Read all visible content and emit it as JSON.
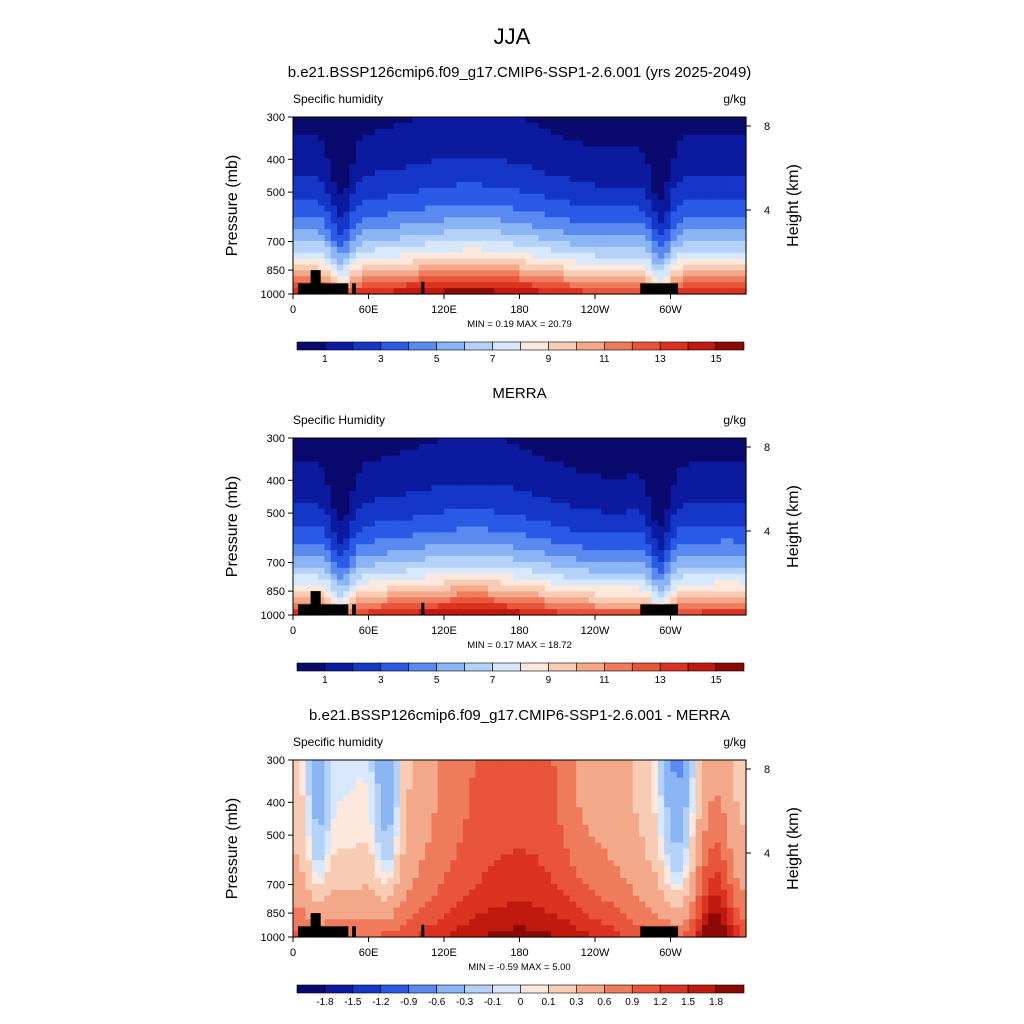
{
  "main_title": "JJA",
  "colors": {
    "abs_levels": [
      "#0a0a6e",
      "#0c1aa0",
      "#1437c8",
      "#2a5ae6",
      "#5a8af0",
      "#8ab4f4",
      "#b4d2f8",
      "#d8e8fc",
      "#fce8dc",
      "#f8ccb4",
      "#f4a88a",
      "#ee7c5c",
      "#e8553a",
      "#dc3220",
      "#c01a10",
      "#8c0a04"
    ],
    "diff_levels": [
      "#0a0a6e",
      "#0c1aa0",
      "#1437c8",
      "#2a5ae6",
      "#5a8af0",
      "#8ab4f4",
      "#b4d2f8",
      "#d8e8fc",
      "#fce8dc",
      "#f8ccb4",
      "#f4a88a",
      "#ee7c5c",
      "#e8553a",
      "#dc3220",
      "#c01a10",
      "#8c0a04"
    ],
    "terrain": "#000000"
  },
  "chart_data": [
    {
      "type": "heatmap",
      "title": "b.e21.BSSP126cmip6.f09_g17.CMIP6-SSP1-2.6.001 (yrs 2025-2049)",
      "variable_label": "Specific humidity",
      "units_label": "g/kg",
      "ylabel_left": "Pressure (mb)",
      "ylabel_right": "Height (km)",
      "y_ticks": [
        "300",
        "400",
        "500",
        "700",
        "850",
        "1000"
      ],
      "y_tick_values": [
        300,
        400,
        500,
        700,
        850,
        1000
      ],
      "y_right_ticks": [
        "8",
        "4"
      ],
      "y_right_tick_values": [
        8,
        4
      ],
      "x_ticks": [
        "0",
        "60E",
        "120E",
        "180",
        "120W",
        "60W"
      ],
      "x_tick_values": [
        0,
        60,
        120,
        180,
        240,
        300
      ],
      "xlim": [
        0,
        360
      ],
      "ylim": [
        1000,
        300
      ],
      "min_max_text": "MIN =   0.19  MAX =  20.79",
      "colorbar_labels": [
        "1",
        "3",
        "5",
        "7",
        "9",
        "11",
        "13",
        "15"
      ]
    },
    {
      "type": "heatmap",
      "title": "MERRA",
      "variable_label": "Specific Humidity",
      "units_label": "g/kg",
      "ylabel_left": "Pressure (mb)",
      "ylabel_right": "Height (km)",
      "y_ticks": [
        "300",
        "400",
        "500",
        "700",
        "850",
        "1000"
      ],
      "y_tick_values": [
        300,
        400,
        500,
        700,
        850,
        1000
      ],
      "y_right_ticks": [
        "8",
        "4"
      ],
      "y_right_tick_values": [
        8,
        4
      ],
      "x_ticks": [
        "0",
        "60E",
        "120E",
        "180",
        "120W",
        "60W"
      ],
      "x_tick_values": [
        0,
        60,
        120,
        180,
        240,
        300
      ],
      "xlim": [
        0,
        360
      ],
      "ylim": [
        1000,
        300
      ],
      "min_max_text": "MIN =   0.17  MAX =  18.72",
      "colorbar_labels": [
        "1",
        "3",
        "5",
        "7",
        "9",
        "11",
        "13",
        "15"
      ]
    },
    {
      "type": "heatmap",
      "title": "b.e21.BSSP126cmip6.f09_g17.CMIP6-SSP1-2.6.001 - MERRA",
      "variable_label": "Specific humidity",
      "units_label": "g/kg",
      "ylabel_left": "Pressure (mb)",
      "ylabel_right": "Height (km)",
      "y_ticks": [
        "300",
        "400",
        "500",
        "700",
        "850",
        "1000"
      ],
      "y_tick_values": [
        300,
        400,
        500,
        700,
        850,
        1000
      ],
      "y_right_ticks": [
        "8",
        "4"
      ],
      "y_right_tick_values": [
        8,
        4
      ],
      "x_ticks": [
        "0",
        "60E",
        "120E",
        "180",
        "120W",
        "60W"
      ],
      "x_tick_values": [
        0,
        60,
        120,
        180,
        240,
        300
      ],
      "xlim": [
        0,
        360
      ],
      "ylim": [
        1000,
        300
      ],
      "min_max_text": "MIN =  -0.59  MAX =   5.00",
      "colorbar_labels": [
        "-1.8",
        "-1.5",
        "-1.2",
        "-0.9",
        "-0.6",
        "-0.3",
        "-0.1",
        "0",
        "0.1",
        "0.3",
        "0.6",
        "0.9",
        "1.2",
        "1.5",
        "1.8"
      ]
    }
  ]
}
